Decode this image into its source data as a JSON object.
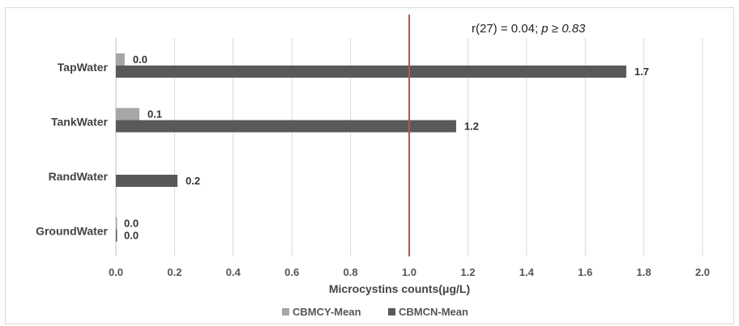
{
  "chart_data": {
    "type": "bar",
    "orientation": "horizontal",
    "categories": [
      "TapWater",
      "TankWater",
      "RandWater",
      "GroundWater"
    ],
    "series": [
      {
        "name": "CBMCY-Mean",
        "color": "#a6a6a6",
        "values": [
          0.03,
          0.08,
          null,
          0.0
        ],
        "labels": [
          "0.0",
          "0.1",
          "",
          "0.0"
        ]
      },
      {
        "name": "CBMCN-Mean",
        "color": "#595959",
        "values": [
          1.74,
          1.16,
          0.21,
          0.0
        ],
        "labels": [
          "1.7",
          "1.2",
          "0.2",
          "0.0"
        ]
      }
    ],
    "xlabel": "Microcystins counts(μg/L)",
    "xlim": [
      0,
      2.0
    ],
    "xticks": [
      "0.0",
      "0.2",
      "0.4",
      "0.6",
      "0.8",
      "1.0",
      "1.2",
      "1.4",
      "1.6",
      "1.8",
      "2.0"
    ],
    "grid": true,
    "legend_position": "bottom",
    "reference_line": {
      "x": 1.0,
      "color": "#c0504d"
    },
    "annotation": {
      "text_plain": "r(27) = 0.04; ",
      "text_italic": "p ≥ 0.83"
    }
  }
}
